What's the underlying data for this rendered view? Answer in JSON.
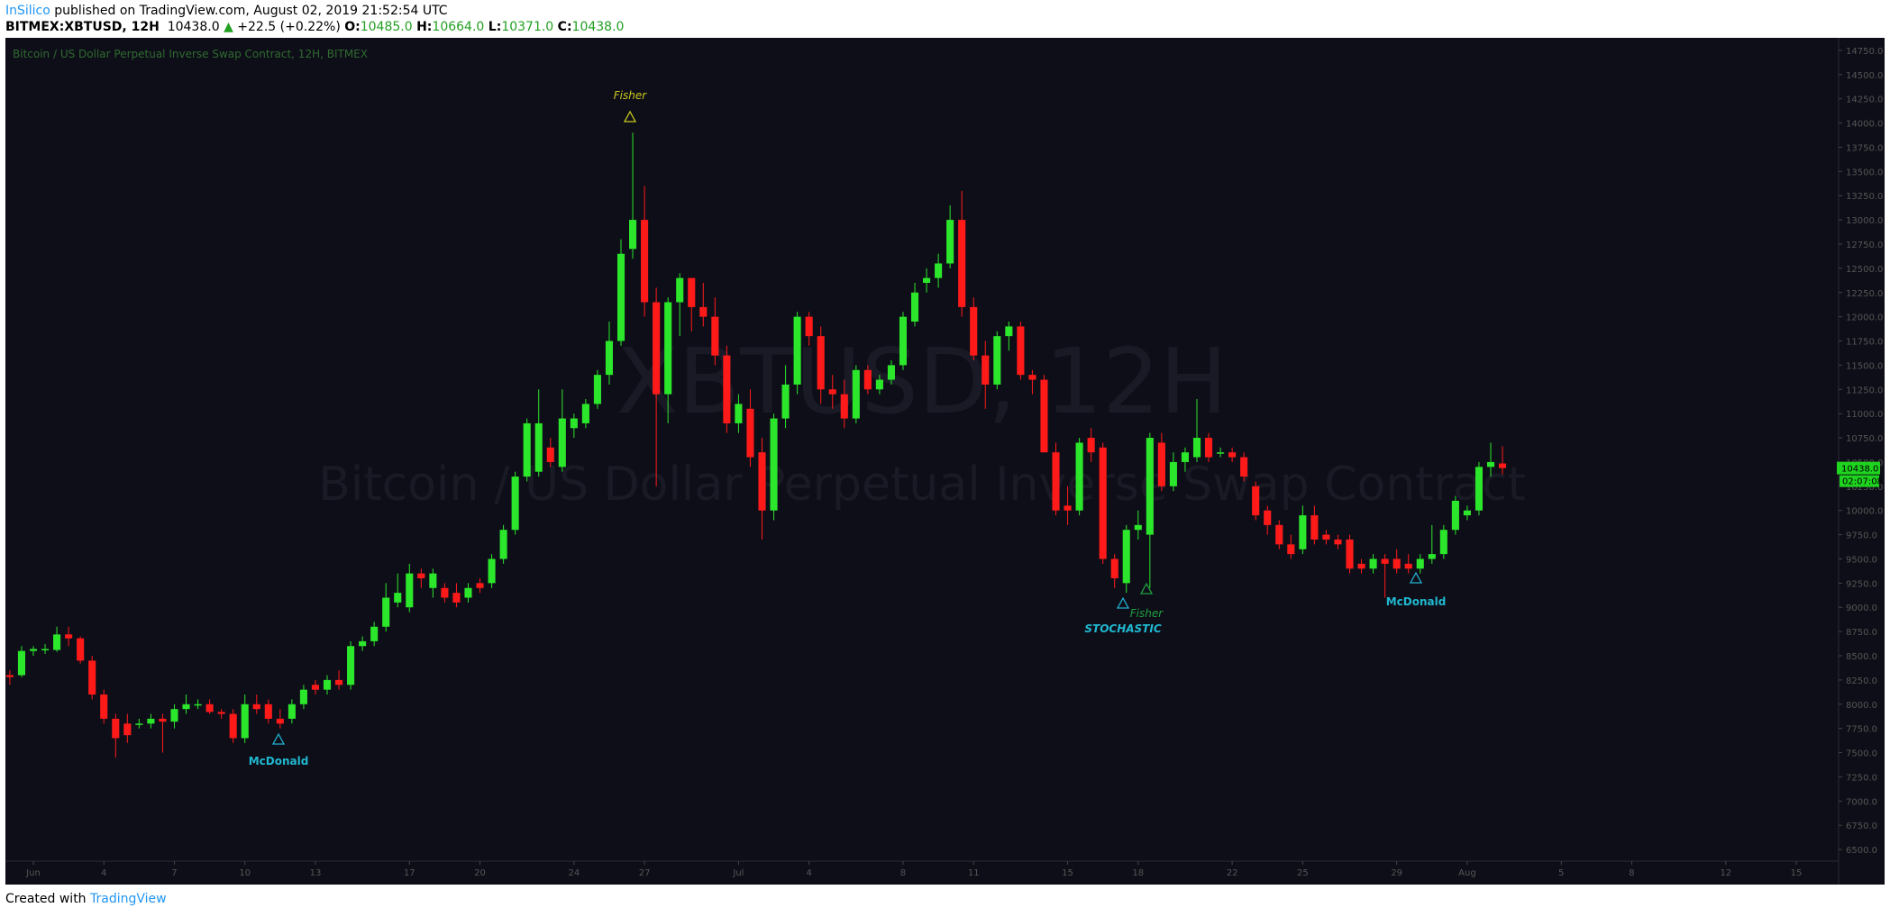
{
  "header": {
    "author": "InSilico",
    "published": "published on TradingView.com, August 02, 2019 21:52:54 UTC",
    "symbol": "BITMEX:XBTUSD, 12H",
    "last": "10438.0",
    "arrow": "▲",
    "change": "+22.5 (+0.22%)",
    "o_label": "O:",
    "o": "10485.0",
    "h_label": "H:",
    "h": "10664.0",
    "l_label": "L:",
    "l": "10371.0",
    "c_label": "C:",
    "c": "10438.0"
  },
  "footer": {
    "created": "Created with",
    "brand": "TradingView"
  },
  "chart_data": {
    "type": "candlestick",
    "legend": "Bitcoin / US Dollar Perpetual Inverse Swap Contract, 12H, BITMEX",
    "watermark": "XBTUSD, 12H",
    "watermark_sub": "Bitcoin / US Dollar Perpetual Inverse Swap Contract",
    "up_color": "#2ce62c",
    "down_color": "#ff1a1a",
    "last_price_label": "10438.0",
    "countdown": "02:07:08",
    "annotations": [
      "Fisher",
      "McDonald",
      "STOCHASTIC",
      "Fisher",
      "McDonald"
    ],
    "xlim": [
      -0.3,
      155.6
    ],
    "xticks": [
      {
        "value": 2,
        "label": "Jun"
      },
      {
        "value": 8,
        "label": "4"
      },
      {
        "value": 14,
        "label": "7"
      },
      {
        "value": 20,
        "label": "10"
      },
      {
        "value": 26,
        "label": "13"
      },
      {
        "value": 34,
        "label": "17"
      },
      {
        "value": 40,
        "label": "20"
      },
      {
        "value": 48,
        "label": "24"
      },
      {
        "value": 54,
        "label": "27"
      },
      {
        "value": 62,
        "label": "Jul"
      },
      {
        "value": 68,
        "label": "4"
      },
      {
        "value": 76,
        "label": "8"
      },
      {
        "value": 82,
        "label": "11"
      },
      {
        "value": 90,
        "label": "15"
      },
      {
        "value": 96,
        "label": "18"
      },
      {
        "value": 104,
        "label": "22"
      },
      {
        "value": 110,
        "label": "25"
      },
      {
        "value": 118,
        "label": "29"
      },
      {
        "value": 124,
        "label": "Aug"
      },
      {
        "value": 132,
        "label": "5"
      },
      {
        "value": 138,
        "label": "8"
      },
      {
        "value": 146,
        "label": "12"
      },
      {
        "value": 152,
        "label": "15"
      }
    ],
    "ylim": [
      6380,
      14870
    ],
    "yticks": [
      {
        "value": 6500,
        "label": "6500.0"
      },
      {
        "value": 6750,
        "label": "6750.0"
      },
      {
        "value": 7000,
        "label": "7000.0"
      },
      {
        "value": 7250,
        "label": "7250.0"
      },
      {
        "value": 7500,
        "label": "7500.0"
      },
      {
        "value": 7750,
        "label": "7750.0"
      },
      {
        "value": 8000,
        "label": "8000.0"
      },
      {
        "value": 8250,
        "label": "8250.0"
      },
      {
        "value": 8500,
        "label": "8500.0"
      },
      {
        "value": 8750,
        "label": "8750.0"
      },
      {
        "value": 9000,
        "label": "9000.0"
      },
      {
        "value": 9250,
        "label": "9250.0"
      },
      {
        "value": 9500,
        "label": "9500.0"
      },
      {
        "value": 9750,
        "label": "9750.0"
      },
      {
        "value": 10000,
        "label": "10000.0"
      },
      {
        "value": 10250,
        "label": "10250.0"
      },
      {
        "value": 10500,
        "label": "10500.0"
      },
      {
        "value": 10750,
        "label": "10750.0"
      },
      {
        "value": 11000,
        "label": "11000.0"
      },
      {
        "value": 11250,
        "label": "11250.0"
      },
      {
        "value": 11500,
        "label": "11500.0"
      },
      {
        "value": 11750,
        "label": "11750.0"
      },
      {
        "value": 12000,
        "label": "12000.0"
      },
      {
        "value": 12250,
        "label": "12250.0"
      },
      {
        "value": 12500,
        "label": "12500.0"
      },
      {
        "value": 12750,
        "label": "12750.0"
      },
      {
        "value": 13000,
        "label": "13000.0"
      },
      {
        "value": 13250,
        "label": "13250.0"
      },
      {
        "value": 13500,
        "label": "13500.0"
      },
      {
        "value": 13750,
        "label": "13750.0"
      },
      {
        "value": 14000,
        "label": "14000.0"
      },
      {
        "value": 14250,
        "label": "14250.0"
      },
      {
        "value": 14500,
        "label": "14500.0"
      },
      {
        "value": 14750,
        "label": "14750.0"
      }
    ],
    "ohlc": [
      [
        8300,
        8350,
        8200,
        8280
      ],
      [
        8300,
        8600,
        8280,
        8550
      ],
      [
        8550,
        8600,
        8500,
        8570
      ],
      [
        8560,
        8620,
        8520,
        8570
      ],
      [
        8560,
        8800,
        8540,
        8720
      ],
      [
        8720,
        8800,
        8600,
        8680
      ],
      [
        8680,
        8700,
        8420,
        8450
      ],
      [
        8450,
        8500,
        8050,
        8100
      ],
      [
        8100,
        8150,
        7800,
        7850
      ],
      [
        7850,
        7900,
        7450,
        7650
      ],
      [
        7800,
        7900,
        7600,
        7680
      ],
      [
        7800,
        7850,
        7750,
        7800
      ],
      [
        7800,
        7900,
        7750,
        7850
      ],
      [
        7850,
        7900,
        7500,
        7820
      ],
      [
        7820,
        8000,
        7750,
        7950
      ],
      [
        7950,
        8100,
        7900,
        8000
      ],
      [
        8000,
        8050,
        7950,
        8000
      ],
      [
        8000,
        8050,
        7900,
        7920
      ],
      [
        7920,
        7950,
        7850,
        7900
      ],
      [
        7900,
        7950,
        7600,
        7650
      ],
      [
        7650,
        8100,
        7600,
        8000
      ],
      [
        8000,
        8100,
        7900,
        7950
      ],
      [
        8000,
        8050,
        7800,
        7850
      ],
      [
        7850,
        7950,
        7750,
        7800
      ],
      [
        7850,
        8050,
        7800,
        8000
      ],
      [
        8000,
        8200,
        7950,
        8150
      ],
      [
        8200,
        8250,
        8100,
        8150
      ],
      [
        8150,
        8300,
        8100,
        8250
      ],
      [
        8250,
        8350,
        8150,
        8200
      ],
      [
        8200,
        8650,
        8150,
        8600
      ],
      [
        8600,
        8700,
        8550,
        8650
      ],
      [
        8650,
        8850,
        8600,
        8800
      ],
      [
        8800,
        9250,
        8750,
        9100
      ],
      [
        9050,
        9350,
        9000,
        9150
      ],
      [
        9000,
        9450,
        8950,
        9350
      ],
      [
        9350,
        9400,
        9200,
        9300
      ],
      [
        9200,
        9400,
        9100,
        9350
      ],
      [
        9200,
        9250,
        9050,
        9100
      ],
      [
        9150,
        9250,
        9000,
        9050
      ],
      [
        9100,
        9250,
        9050,
        9200
      ],
      [
        9250,
        9300,
        9150,
        9200
      ],
      [
        9250,
        9550,
        9200,
        9500
      ],
      [
        9500,
        9850,
        9450,
        9800
      ],
      [
        9800,
        10400,
        9750,
        10350
      ],
      [
        10350,
        10950,
        10300,
        10900
      ],
      [
        10400,
        11250,
        10350,
        10900
      ],
      [
        10650,
        10750,
        10450,
        10500
      ],
      [
        10450,
        11250,
        10400,
        10950
      ],
      [
        10850,
        11000,
        10750,
        10950
      ],
      [
        10900,
        11150,
        10850,
        11100
      ],
      [
        11100,
        11450,
        11050,
        11400
      ],
      [
        11400,
        11950,
        11300,
        11750
      ],
      [
        11750,
        12800,
        11700,
        12650
      ],
      [
        12700,
        13900,
        12600,
        13000
      ],
      [
        13000,
        13350,
        12000,
        12150
      ],
      [
        12150,
        12300,
        10250,
        11200
      ],
      [
        11200,
        12200,
        10900,
        12150
      ],
      [
        12150,
        12450,
        11800,
        12400
      ],
      [
        12400,
        12400,
        11850,
        12100
      ],
      [
        12100,
        12350,
        11900,
        12000
      ],
      [
        12000,
        12200,
        11500,
        11600
      ],
      [
        11600,
        11700,
        10800,
        10900
      ],
      [
        10900,
        11200,
        10800,
        11100
      ],
      [
        11050,
        11250,
        10450,
        10550
      ],
      [
        10600,
        10750,
        9700,
        10000
      ],
      [
        10000,
        11000,
        9900,
        10950
      ],
      [
        10950,
        11500,
        10850,
        11300
      ],
      [
        11300,
        12050,
        11200,
        12000
      ],
      [
        12000,
        12050,
        11700,
        11800
      ],
      [
        11800,
        11900,
        11100,
        11250
      ],
      [
        11250,
        11400,
        11050,
        11200
      ],
      [
        11200,
        11350,
        10850,
        10950
      ],
      [
        10950,
        11500,
        10900,
        11450
      ],
      [
        11450,
        11500,
        11200,
        11250
      ],
      [
        11250,
        11400,
        11200,
        11350
      ],
      [
        11350,
        11550,
        11300,
        11500
      ],
      [
        11500,
        12050,
        11450,
        12000
      ],
      [
        11950,
        12350,
        11900,
        12250
      ],
      [
        12350,
        12500,
        12250,
        12400
      ],
      [
        12400,
        12650,
        12300,
        12550
      ],
      [
        12550,
        13150,
        12500,
        13000
      ],
      [
        13000,
        13300,
        12000,
        12100
      ],
      [
        12100,
        12200,
        11550,
        11600
      ],
      [
        11600,
        11750,
        11050,
        11300
      ],
      [
        11300,
        11850,
        11250,
        11800
      ],
      [
        11800,
        11950,
        11650,
        11900
      ],
      [
        11900,
        11950,
        11350,
        11400
      ],
      [
        11400,
        11450,
        11200,
        11350
      ],
      [
        11350,
        11400,
        10600,
        10600
      ],
      [
        10600,
        10700,
        9950,
        10000
      ],
      [
        10050,
        10250,
        9850,
        10000
      ],
      [
        10000,
        10750,
        9950,
        10700
      ],
      [
        10750,
        10850,
        10500,
        10600
      ],
      [
        10650,
        10700,
        9450,
        9500
      ],
      [
        9500,
        9550,
        9200,
        9300
      ],
      [
        9250,
        9850,
        9150,
        9800
      ],
      [
        9800,
        10000,
        9700,
        9850
      ],
      [
        9750,
        10800,
        9200,
        10750
      ],
      [
        10700,
        10800,
        10200,
        10250
      ],
      [
        10250,
        10600,
        10200,
        10500
      ],
      [
        10500,
        10650,
        10400,
        10600
      ],
      [
        10550,
        11150,
        10500,
        10750
      ],
      [
        10750,
        10800,
        10500,
        10550
      ],
      [
        10600,
        10650,
        10550,
        10600
      ],
      [
        10600,
        10650,
        10500,
        10550
      ],
      [
        10550,
        10600,
        10300,
        10350
      ],
      [
        10250,
        10300,
        9900,
        9950
      ],
      [
        10000,
        10050,
        9750,
        9850
      ],
      [
        9850,
        9900,
        9600,
        9650
      ],
      [
        9650,
        9750,
        9500,
        9550
      ],
      [
        9600,
        10050,
        9550,
        9950
      ],
      [
        9950,
        10050,
        9650,
        9700
      ],
      [
        9750,
        9800,
        9650,
        9700
      ],
      [
        9700,
        9750,
        9600,
        9650
      ],
      [
        9700,
        9750,
        9350,
        9400
      ],
      [
        9450,
        9500,
        9350,
        9400
      ],
      [
        9400,
        9550,
        9350,
        9500
      ],
      [
        9500,
        9550,
        9100,
        9450
      ],
      [
        9500,
        9600,
        9350,
        9400
      ],
      [
        9450,
        9550,
        9350,
        9400
      ],
      [
        9400,
        9550,
        9350,
        9500
      ],
      [
        9500,
        9850,
        9450,
        9550
      ],
      [
        9550,
        9850,
        9500,
        9800
      ],
      [
        9800,
        10150,
        9750,
        10100
      ],
      [
        9950,
        10050,
        9900,
        10000
      ],
      [
        10000,
        10500,
        9950,
        10450
      ],
      [
        10450,
        10700,
        10350,
        10500
      ],
      [
        10485,
        10664,
        10371,
        10438
      ]
    ]
  }
}
